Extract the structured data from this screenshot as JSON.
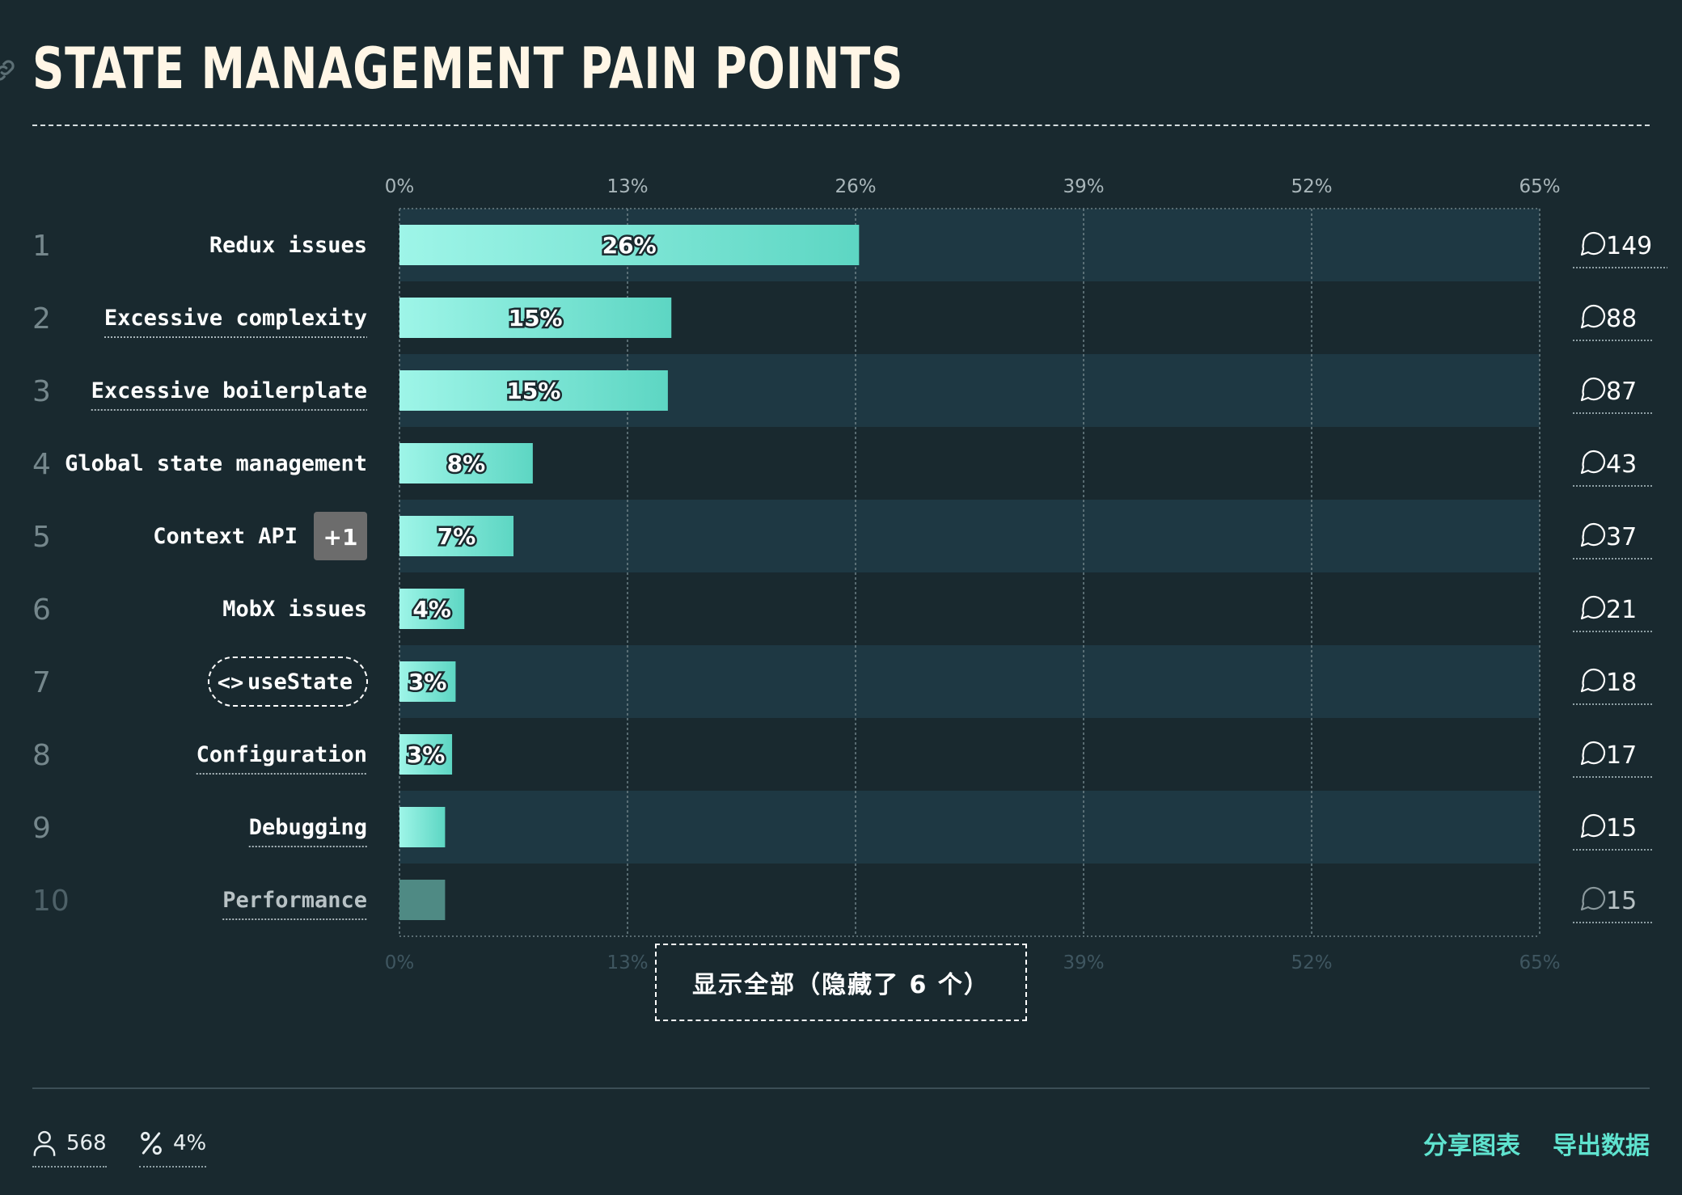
{
  "title": "STATE MANAGEMENT PAIN POINTS",
  "colors": {
    "background": "#19292f",
    "row_band": "#1e3843",
    "bar_start": "#9ef5e8",
    "bar_end": "#5dd6c3",
    "bar_muted": "#4f8a84",
    "accent": "#5fe3cf",
    "badge": "#6c6c6c"
  },
  "chart_data": {
    "type": "bar",
    "orientation": "horizontal",
    "xlim": [
      0,
      65
    ],
    "ticks": [
      "0%",
      "13%",
      "26%",
      "39%",
      "52%",
      "65%"
    ],
    "tick_values": [
      0,
      13,
      26,
      39,
      52,
      65
    ],
    "grid": true,
    "categories": [
      {
        "rank": "1",
        "label": "Redux issues",
        "value": 26.2,
        "value_label": "26%",
        "count": "149",
        "underline": false
      },
      {
        "rank": "2",
        "label": "Excessive complexity",
        "value": 15.5,
        "value_label": "15%",
        "count": "88",
        "underline": true
      },
      {
        "rank": "3",
        "label": "Excessive boilerplate",
        "value": 15.3,
        "value_label": "15%",
        "count": "87",
        "underline": true
      },
      {
        "rank": "4",
        "label": "Global state management",
        "value": 7.6,
        "value_label": "8%",
        "count": "43",
        "underline": false
      },
      {
        "rank": "5",
        "label": "Context API",
        "value": 6.5,
        "value_label": "7%",
        "count": "37",
        "underline": false,
        "badge": "+1"
      },
      {
        "rank": "6",
        "label": "MobX issues",
        "value": 3.7,
        "value_label": "4%",
        "count": "21",
        "underline": false
      },
      {
        "rank": "7",
        "label": "useState",
        "value": 3.2,
        "value_label": "3%",
        "count": "18",
        "underline": false,
        "code_icon": "code-icon"
      },
      {
        "rank": "8",
        "label": "Configuration",
        "value": 3.0,
        "value_label": "3%",
        "count": "17",
        "underline": true
      },
      {
        "rank": "9",
        "label": "Debugging",
        "value": 2.6,
        "value_label": "",
        "count": "15",
        "underline": true
      },
      {
        "rank": "10",
        "label": "Performance",
        "value": 2.6,
        "value_label": "",
        "count": "15",
        "underline": true,
        "muted": true
      }
    ]
  },
  "show_all_label": "显示全部（隐藏了 6 个）",
  "footer": {
    "respondents": "568",
    "percent": "4%",
    "share_label": "分享图表",
    "export_label": "导出数据"
  },
  "icons": {
    "title_link": "link-icon",
    "count": "comment-icon",
    "respondents": "user-icon",
    "percent": "percent-icon"
  }
}
